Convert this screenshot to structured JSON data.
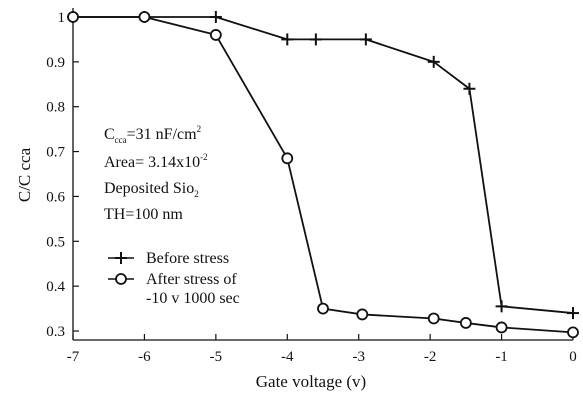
{
  "chart_data": {
    "type": "line",
    "title": "",
    "xlabel": "Gate voltage (v)",
    "ylabel": "C/C cca",
    "xlim": [
      -7,
      0
    ],
    "ylim": [
      0.28,
      1.02
    ],
    "xticks": [
      -7,
      -6,
      -5,
      -4,
      -3,
      -2,
      -1,
      0
    ],
    "xtick_labels": [
      "-7",
      "-6",
      "-5",
      "-4",
      "-3",
      "-2",
      "-1",
      "0"
    ],
    "yticks": [
      0.3,
      0.4,
      0.5,
      0.6,
      0.7,
      0.8,
      0.9,
      1.0
    ],
    "ytick_labels": [
      "0.3",
      "0.4",
      "0.5",
      "0.6",
      "0.7",
      "0.8",
      "0.9",
      "1"
    ],
    "grid": false,
    "legend_position": "center-left",
    "series": [
      {
        "name": "Before stress",
        "marker": "plus",
        "x": [
          -7,
          -6,
          -5,
          -4,
          -3.6,
          -2.9,
          -1.95,
          -1.45,
          -1,
          0
        ],
        "y": [
          1.0,
          1.0,
          1.0,
          0.95,
          0.95,
          0.95,
          0.9,
          0.84,
          0.355,
          0.34
        ]
      },
      {
        "name": "After stress of -10 v 1000 sec",
        "legend_lines": [
          "After stress of",
          "-10 v 1000 sec"
        ],
        "marker": "circle",
        "x": [
          -7,
          -6,
          -5,
          -4,
          -3.5,
          -2.95,
          -1.95,
          -1.5,
          -1,
          0
        ],
        "y": [
          1.0,
          1.0,
          0.96,
          0.685,
          0.35,
          0.337,
          0.328,
          0.318,
          0.308,
          0.297
        ]
      }
    ],
    "annotations": {
      "ccca": {
        "main": "C",
        "sub": "cca",
        "rest": "=31 nF/cm",
        "sup": "2"
      },
      "area": {
        "main": "Area= 3.14x10",
        "sup": "-2"
      },
      "oxide": {
        "main": "Deposited Sio",
        "sub": "2"
      },
      "thickness": "TH=100 nm"
    }
  }
}
